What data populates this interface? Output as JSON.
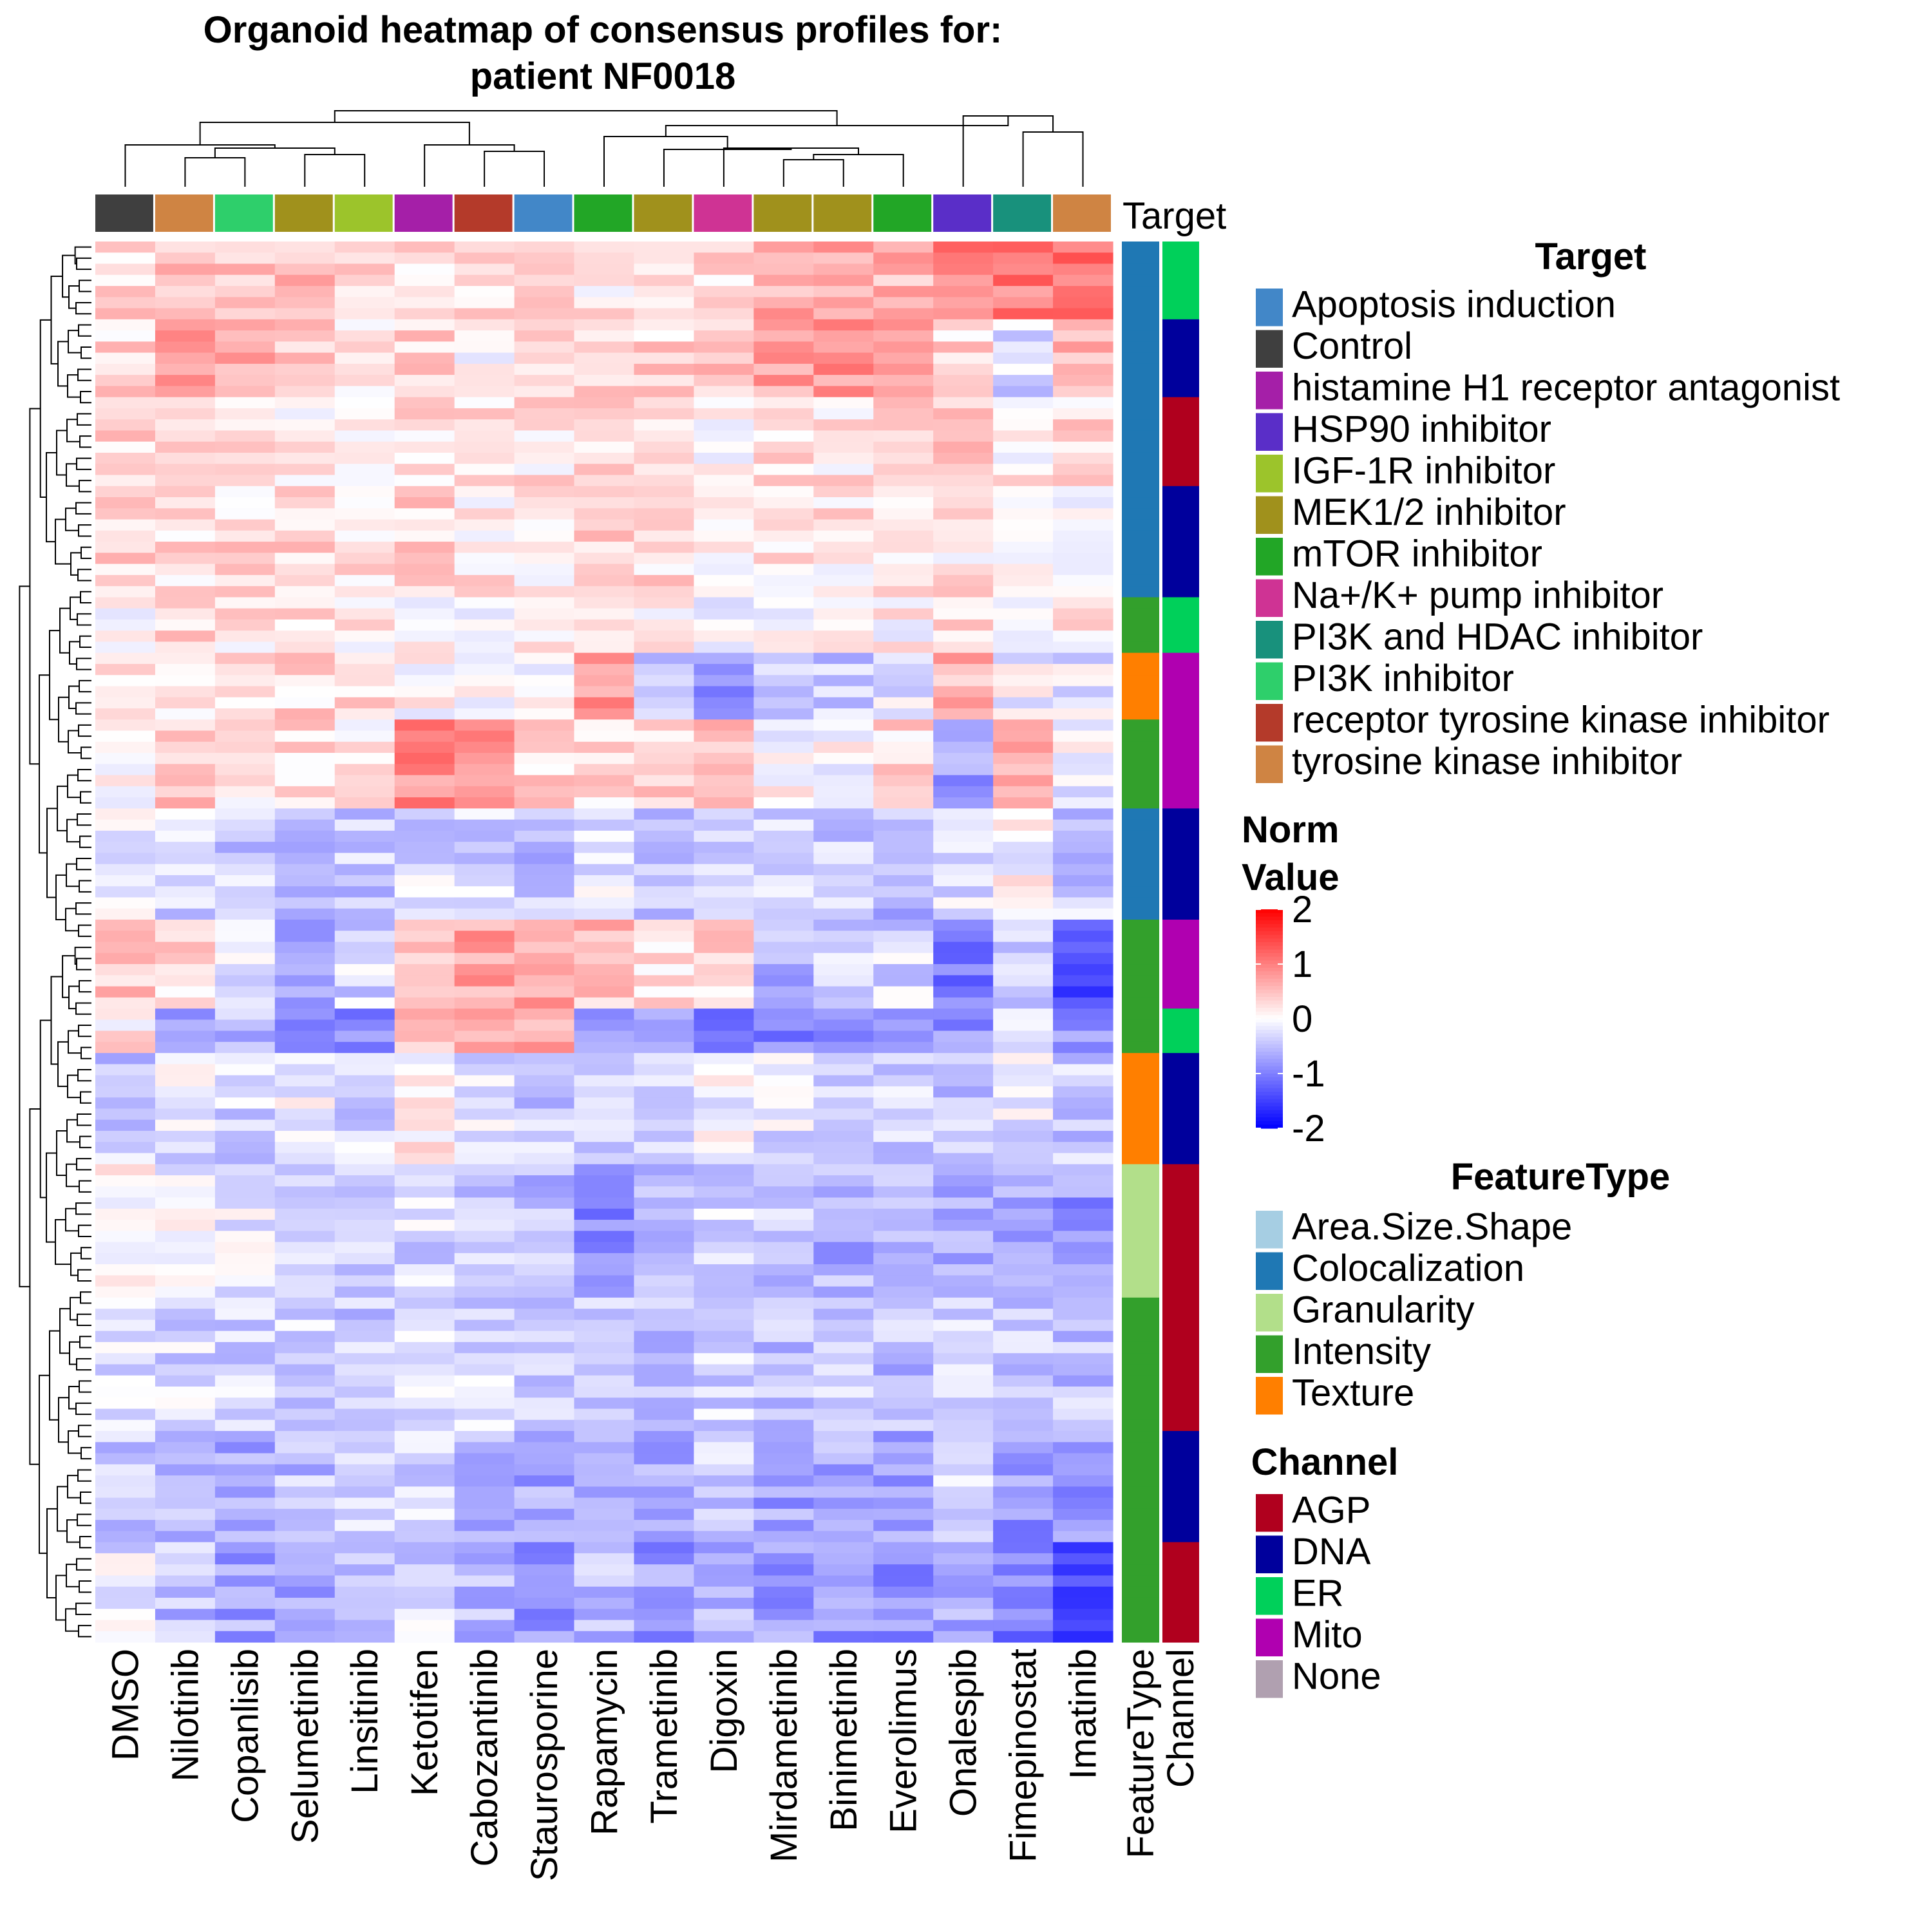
{
  "chart_data": {
    "type": "heatmap",
    "title_lines": [
      "Organoid heatmap of consensus profiles for:",
      "patient NF0018"
    ],
    "columns": [
      "DMSO",
      "Nilotinib",
      "Copanlisib",
      "Selumetinib",
      "Linsitinib",
      "Ketotifen",
      "Cabozantinib",
      "Staurosporine",
      "Rapamycin",
      "Trametinib",
      "Digoxin",
      "Mirdametinib",
      "Binimetinib",
      "Everolimus",
      "Onalespib",
      "Fimepinostat",
      "Imatinib"
    ],
    "column_targets": [
      "Control",
      "tyrosine kinase inhibitor",
      "PI3K inhibitor",
      "MEK1/2 inhibitor",
      "IGF-1R inhibitor",
      "histamine H1 receptor antagonist",
      "receptor tyrosine kinase inhibitor",
      "Apoptosis induction",
      "mTOR inhibitor",
      "MEK1/2 inhibitor",
      "Na+/K+ pump inhibitor",
      "MEK1/2 inhibitor",
      "MEK1/2 inhibitor",
      "mTOR inhibitor",
      "HSP90 inhibitor",
      "PI3K and HDAC inhibitor",
      "tyrosine kinase inhibitor"
    ],
    "top_annotation_label": "Target",
    "row_annotation_labels": [
      "FeatureType",
      "Channel"
    ],
    "color_scale": {
      "title_lines": [
        "Norm",
        "Value"
      ],
      "ticks": [
        2,
        1,
        0,
        -1,
        -2
      ],
      "range": [
        -2,
        2
      ],
      "low": "#0000ff",
      "mid": "#ffffff",
      "high": "#ff0000"
    },
    "row_count": 126,
    "row_blocks": [
      {
        "rows": 7,
        "feature": "Colocalization",
        "channel": "ER",
        "bias": [
          0.3,
          0.5,
          0.5,
          0.5,
          0.4,
          0.2,
          0.3,
          0.2,
          0.2,
          0.4,
          0.3,
          0.6,
          0.6,
          0.6,
          0.9,
          1.0,
          1.1
        ]
      },
      {
        "rows": 7,
        "feature": "Colocalization",
        "channel": "DNA",
        "bias": [
          0.3,
          0.9,
          0.6,
          0.3,
          0.2,
          0.3,
          0.1,
          0.2,
          0.4,
          0.3,
          0.4,
          0.7,
          0.8,
          0.6,
          0.3,
          -0.3,
          0.6
        ]
      },
      {
        "rows": 8,
        "feature": "Colocalization",
        "channel": "AGP",
        "bias": [
          0.3,
          0.2,
          0.2,
          0.2,
          0.2,
          0.3,
          0.2,
          0.2,
          0.3,
          0.3,
          0.0,
          0.2,
          0.2,
          0.3,
          0.5,
          0.1,
          0.3
        ]
      },
      {
        "rows": 10,
        "feature": "Colocalization",
        "channel": "DNA",
        "bias": [
          0.4,
          0.3,
          0.3,
          0.3,
          0.3,
          0.3,
          0.2,
          0.2,
          0.3,
          0.3,
          0.1,
          0.2,
          0.2,
          0.2,
          0.2,
          0.2,
          0.1
        ]
      },
      {
        "rows": 5,
        "feature": "Intensity",
        "channel": "ER",
        "bias": [
          0.1,
          0.3,
          0.2,
          0.2,
          0.2,
          0.1,
          0.1,
          0.1,
          0.3,
          0.1,
          0.0,
          0.1,
          0.0,
          0.1,
          0.3,
          -0.2,
          0.2
        ]
      },
      {
        "rows": 6,
        "feature": "Texture",
        "channel": "Mito",
        "bias": [
          0.2,
          0.3,
          0.2,
          0.3,
          0.3,
          0.0,
          0.1,
          -0.1,
          0.8,
          -0.5,
          -1.0,
          -0.3,
          -0.4,
          -0.2,
          0.6,
          -0.1,
          -0.2
        ]
      },
      {
        "rows": 8,
        "feature": "Intensity",
        "channel": "Mito",
        "bias": [
          0.0,
          0.4,
          0.2,
          0.3,
          0.1,
          0.9,
          0.9,
          0.3,
          0.3,
          0.3,
          0.5,
          0.0,
          0.0,
          0.3,
          -0.8,
          0.5,
          -0.1
        ]
      },
      {
        "rows": 10,
        "feature": "Colocalization",
        "channel": "DNA",
        "bias": [
          -0.2,
          -0.3,
          -0.4,
          -0.4,
          -0.4,
          -0.3,
          -0.3,
          -0.5,
          -0.2,
          -0.4,
          -0.4,
          -0.4,
          -0.4,
          -0.6,
          -0.2,
          0.0,
          -0.4
        ]
      },
      {
        "rows": 8,
        "feature": "Intensity",
        "channel": "Mito",
        "bias": [
          0.5,
          0.3,
          -0.2,
          -0.6,
          -0.3,
          0.6,
          0.7,
          0.7,
          0.5,
          0.3,
          0.3,
          -0.6,
          -0.4,
          -0.3,
          -1.1,
          -0.5,
          -1.4
        ]
      },
      {
        "rows": 4,
        "feature": "Intensity",
        "channel": "ER",
        "bias": [
          0.2,
          -0.8,
          -0.5,
          -0.9,
          -0.9,
          0.6,
          0.8,
          0.7,
          -0.9,
          -0.9,
          -0.9,
          -0.9,
          -0.9,
          -0.9,
          -0.9,
          -0.4,
          -0.9
        ]
      },
      {
        "rows": 10,
        "feature": "Texture",
        "channel": "DNA",
        "bias": [
          -0.4,
          -0.2,
          -0.3,
          -0.1,
          -0.3,
          0.1,
          -0.2,
          -0.4,
          -0.4,
          -0.3,
          -0.1,
          -0.2,
          -0.3,
          -0.4,
          -0.4,
          -0.2,
          -0.4
        ]
      },
      {
        "rows": 12,
        "feature": "Granularity",
        "channel": "AGP",
        "bias": [
          0.0,
          -0.1,
          -0.2,
          -0.2,
          -0.3,
          -0.3,
          -0.4,
          -0.5,
          -0.9,
          -0.4,
          -0.3,
          -0.4,
          -0.6,
          -0.6,
          -0.6,
          -0.7,
          -0.8
        ]
      },
      {
        "rows": 12,
        "feature": "Intensity",
        "channel": "AGP",
        "bias": [
          -0.3,
          -0.3,
          -0.3,
          -0.3,
          -0.4,
          -0.3,
          -0.3,
          -0.4,
          -0.5,
          -0.5,
          -0.3,
          -0.5,
          -0.4,
          -0.5,
          -0.4,
          -0.4,
          -0.5
        ]
      },
      {
        "rows": 10,
        "feature": "Intensity",
        "channel": "DNA",
        "bias": [
          -0.4,
          -0.5,
          -0.7,
          -0.5,
          -0.4,
          -0.3,
          -0.6,
          -0.7,
          -0.6,
          -0.7,
          -0.4,
          -0.7,
          -0.7,
          -0.7,
          -0.2,
          -0.8,
          -0.8
        ]
      },
      {
        "rows": 9,
        "feature": "Intensity",
        "channel": "AGP",
        "bias": [
          -0.2,
          -0.5,
          -0.7,
          -0.7,
          -0.4,
          -0.3,
          -0.6,
          -0.9,
          -0.5,
          -0.8,
          -0.6,
          -0.8,
          -0.8,
          -0.9,
          -0.6,
          -1.0,
          -1.4
        ]
      }
    ]
  },
  "legends": {
    "target": {
      "title": "Target",
      "items": [
        {
          "label": "Apoptosis induction",
          "color": "#4287c8"
        },
        {
          "label": "Control",
          "color": "#3f3f3f"
        },
        {
          "label": "histamine H1 receptor antagonist",
          "color": "#a51fa8"
        },
        {
          "label": "HSP90 inhibitor",
          "color": "#5a2ec8"
        },
        {
          "label": "IGF-1R inhibitor",
          "color": "#9cc42b"
        },
        {
          "label": "MEK1/2 inhibitor",
          "color": "#a0911c"
        },
        {
          "label": "mTOR inhibitor",
          "color": "#22a626"
        },
        {
          "label": "Na+/K+ pump inhibitor",
          "color": "#cf3394"
        },
        {
          "label": "PI3K and HDAC inhibitor",
          "color": "#18917c"
        },
        {
          "label": "PI3K inhibitor",
          "color": "#2ecf6b"
        },
        {
          "label": "receptor tyrosine kinase inhibitor",
          "color": "#b43a2a"
        },
        {
          "label": "tyrosine kinase inhibitor",
          "color": "#cf8443"
        }
      ]
    },
    "feature_type": {
      "title": "FeatureType",
      "items": [
        {
          "label": "Area.Size.Shape",
          "color": "#a6cee3"
        },
        {
          "label": "Colocalization",
          "color": "#1f78b4"
        },
        {
          "label": "Granularity",
          "color": "#b2df8a"
        },
        {
          "label": "Intensity",
          "color": "#33a02c"
        },
        {
          "label": "Texture",
          "color": "#ff7f00"
        }
      ]
    },
    "channel": {
      "title": "Channel",
      "items": [
        {
          "label": "AGP",
          "color": "#b0001e"
        },
        {
          "label": "DNA",
          "color": "#00009c"
        },
        {
          "label": "ER",
          "color": "#00d05a"
        },
        {
          "label": "Mito",
          "color": "#b000b0"
        },
        {
          "label": "None",
          "color": "#b0a0b0"
        }
      ]
    }
  }
}
